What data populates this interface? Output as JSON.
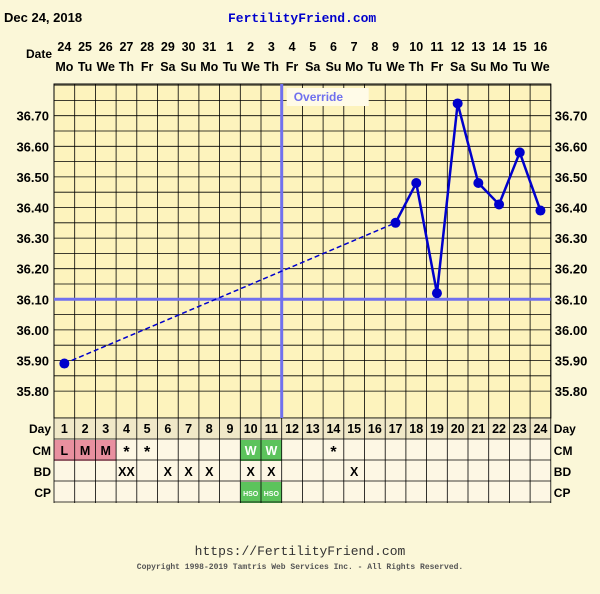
{
  "header": {
    "date": "Dec 24, 2018",
    "site": "FertilityFriend.com"
  },
  "footer": {
    "url": "https://FertilityFriend.com",
    "copyright": "Copyright 1998-2019 Tamtris Web Services Inc. - All Rights Reserved."
  },
  "row_labels": {
    "date": "Date",
    "day": "Day",
    "cm": "CM",
    "bd": "BD",
    "cp": "CP"
  },
  "colors": {
    "background": "#fbf7d8",
    "plot": "#fdf3bd",
    "line": "#0000cc",
    "highlight": "#7070ee",
    "cm_pink": "#e8909f",
    "cm_green": "#5cc35c"
  },
  "chart_data": {
    "type": "line",
    "dates": [
      "24",
      "25",
      "26",
      "27",
      "28",
      "29",
      "30",
      "31",
      "1",
      "2",
      "3",
      "4",
      "5",
      "6",
      "7",
      "8",
      "9",
      "10",
      "11",
      "12",
      "13",
      "14",
      "15",
      "16"
    ],
    "weekdays": [
      "Mo",
      "Tu",
      "We",
      "Th",
      "Fr",
      "Sa",
      "Su",
      "Mo",
      "Tu",
      "We",
      "Th",
      "Fr",
      "Sa",
      "Su",
      "Mo",
      "Tu",
      "We",
      "Th",
      "Fr",
      "Sa",
      "Su",
      "Mo",
      "Tu",
      "We"
    ],
    "cycle_days": [
      "1",
      "2",
      "3",
      "4",
      "5",
      "6",
      "7",
      "8",
      "9",
      "10",
      "11",
      "12",
      "13",
      "14",
      "15",
      "16",
      "17",
      "18",
      "19",
      "20",
      "21",
      "22",
      "23",
      "24"
    ],
    "y_ticks": [
      "35.80",
      "35.90",
      "36.00",
      "36.10",
      "36.20",
      "36.30",
      "36.40",
      "36.50",
      "36.60",
      "36.70"
    ],
    "ylim": [
      35.75,
      36.8
    ],
    "temps": [
      {
        "day": 1,
        "value": 35.89
      },
      {
        "day": 17,
        "value": 36.35
      },
      {
        "day": 18,
        "value": 36.48
      },
      {
        "day": 19,
        "value": 36.12
      },
      {
        "day": 20,
        "value": 36.74
      },
      {
        "day": 21,
        "value": 36.48
      },
      {
        "day": 22,
        "value": 36.41
      },
      {
        "day": 23,
        "value": 36.58
      },
      {
        "day": 24,
        "value": 36.39
      }
    ],
    "dashed_segment": [
      1,
      17
    ],
    "coverline": 36.1,
    "override_day": 11,
    "override_label": "Override",
    "cm": [
      {
        "day": 1,
        "text": "L",
        "bg": "pink"
      },
      {
        "day": 2,
        "text": "M",
        "bg": "pink"
      },
      {
        "day": 3,
        "text": "M",
        "bg": "pink"
      },
      {
        "day": 4,
        "text": "*"
      },
      {
        "day": 5,
        "text": "*"
      },
      {
        "day": 10,
        "text": "W",
        "bg": "green"
      },
      {
        "day": 11,
        "text": "W",
        "bg": "green"
      },
      {
        "day": 14,
        "text": "*"
      }
    ],
    "bd": [
      {
        "day": 4,
        "text": "XX"
      },
      {
        "day": 6,
        "text": "X"
      },
      {
        "day": 7,
        "text": "X"
      },
      {
        "day": 8,
        "text": "X"
      },
      {
        "day": 10,
        "text": "X"
      },
      {
        "day": 11,
        "text": "X"
      },
      {
        "day": 15,
        "text": "X"
      }
    ],
    "cp": [
      {
        "day": 10,
        "text": "HSO",
        "bg": "green"
      },
      {
        "day": 11,
        "text": "HSO",
        "bg": "green"
      }
    ]
  }
}
